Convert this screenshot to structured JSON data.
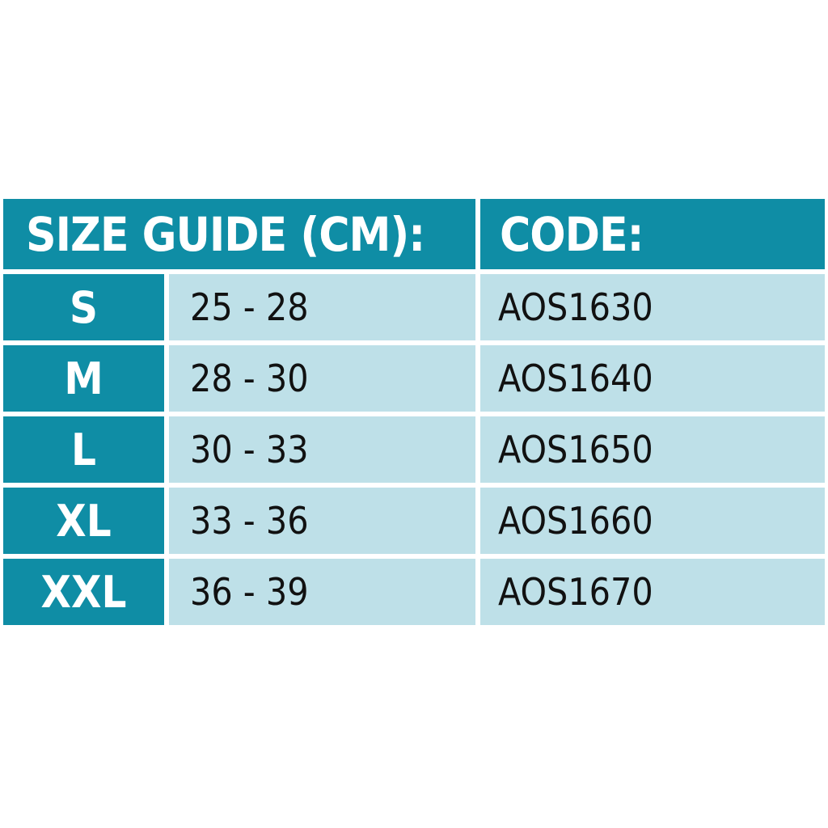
{
  "header": {
    "size_guide": "SIZE GUIDE (CM):",
    "code": "CODE:"
  },
  "rows": [
    {
      "size": "S",
      "range": "25 - 28",
      "code": "AOS1630"
    },
    {
      "size": "M",
      "range": "28 - 30",
      "code": "AOS1640"
    },
    {
      "size": "L",
      "range": "30 - 33",
      "code": "AOS1650"
    },
    {
      "size": "XL",
      "range": "33 - 36",
      "code": "AOS1660"
    },
    {
      "size": "XXL",
      "range": "36 - 39",
      "code": "AOS1670"
    }
  ],
  "colors": {
    "header": "#0f8da5",
    "cell": "#bee0e8"
  }
}
